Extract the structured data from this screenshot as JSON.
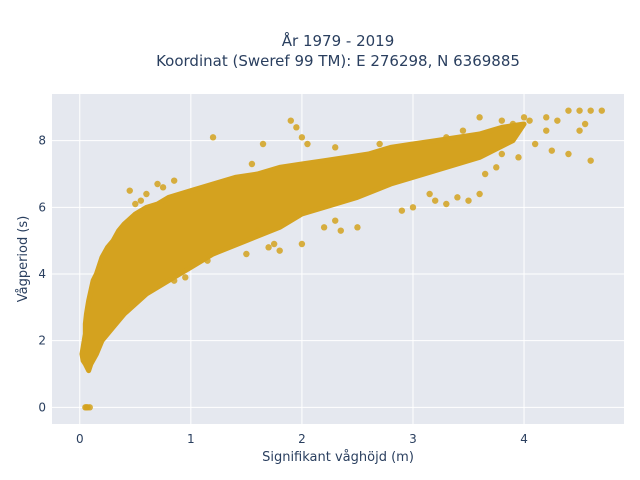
{
  "chart_data": {
    "type": "scatter",
    "title_line1": "År 1979 - 2019",
    "title_line2": "Koordinat (Sweref 99 TM): E 276298, N 6369885",
    "xlabel": "Signifikant våghöjd (m)",
    "ylabel": "Vågperiod (s)",
    "xlim": [
      -0.25,
      4.9
    ],
    "ylim": [
      -0.5,
      9.4
    ],
    "x_ticks": [
      0,
      1,
      2,
      3,
      4
    ],
    "y_ticks": [
      0,
      2,
      4,
      6,
      8
    ],
    "x_tick_labels": [
      "0",
      "1",
      "2",
      "3",
      "4"
    ],
    "y_tick_labels": [
      "0",
      "2",
      "4",
      "6",
      "8"
    ],
    "grid": true,
    "marker_color": "#d4a21f",
    "plot_background": "#e5e8ef",
    "series": [
      {
        "cloud_points": [
          [
            0.02,
            1.6
          ],
          [
            0.03,
            1.8
          ],
          [
            0.04,
            2.0
          ],
          [
            0.05,
            2.2
          ],
          [
            0.05,
            2.5
          ],
          [
            0.06,
            2.8
          ],
          [
            0.07,
            3.0
          ],
          [
            0.08,
            3.2
          ],
          [
            0.1,
            3.5
          ],
          [
            0.12,
            3.8
          ],
          [
            0.15,
            4.0
          ],
          [
            0.2,
            4.5
          ],
          [
            0.25,
            4.8
          ],
          [
            0.3,
            5.0
          ],
          [
            0.35,
            5.3
          ],
          [
            0.4,
            5.5
          ],
          [
            0.5,
            5.8
          ],
          [
            0.6,
            6.0
          ],
          [
            0.7,
            6.1
          ],
          [
            0.8,
            6.3
          ],
          [
            0.9,
            6.4
          ],
          [
            1.0,
            6.5
          ],
          [
            1.2,
            6.7
          ],
          [
            1.4,
            6.9
          ],
          [
            1.6,
            7.0
          ],
          [
            1.8,
            7.2
          ],
          [
            2.0,
            7.3
          ],
          [
            2.2,
            7.4
          ],
          [
            2.4,
            7.5
          ],
          [
            2.6,
            7.6
          ],
          [
            2.8,
            7.8
          ],
          [
            3.0,
            7.9
          ],
          [
            3.2,
            8.0
          ],
          [
            3.4,
            8.1
          ],
          [
            3.6,
            8.2
          ],
          [
            3.8,
            8.4
          ],
          [
            4.0,
            8.5
          ],
          [
            3.9,
            8.0
          ],
          [
            3.6,
            7.5
          ],
          [
            3.3,
            7.2
          ],
          [
            3.0,
            6.9
          ],
          [
            2.8,
            6.7
          ],
          [
            2.5,
            6.3
          ],
          [
            2.2,
            6.0
          ],
          [
            2.0,
            5.8
          ],
          [
            1.8,
            5.4
          ],
          [
            1.5,
            5.0
          ],
          [
            1.2,
            4.6
          ],
          [
            1.0,
            4.2
          ],
          [
            0.8,
            3.8
          ],
          [
            0.6,
            3.4
          ],
          [
            0.4,
            2.8
          ],
          [
            0.3,
            2.4
          ],
          [
            0.2,
            2.0
          ],
          [
            0.15,
            1.6
          ],
          [
            0.1,
            1.3
          ],
          [
            0.08,
            1.1
          ],
          [
            0.05,
            1.3
          ],
          [
            0.03,
            1.4
          ]
        ],
        "outliers": [
          [
            0.05,
            0.0
          ],
          [
            0.07,
            0.0
          ],
          [
            0.09,
            0.0
          ],
          [
            0.06,
            0.0
          ],
          [
            0.7,
            6.7
          ],
          [
            0.75,
            6.6
          ],
          [
            1.2,
            8.1
          ],
          [
            1.55,
            7.3
          ],
          [
            1.9,
            8.6
          ],
          [
            1.95,
            8.4
          ],
          [
            2.0,
            8.1
          ],
          [
            2.05,
            7.9
          ],
          [
            1.65,
            7.9
          ],
          [
            2.3,
            7.8
          ],
          [
            2.7,
            7.9
          ],
          [
            3.3,
            8.1
          ],
          [
            3.45,
            8.3
          ],
          [
            3.6,
            8.7
          ],
          [
            3.8,
            8.6
          ],
          [
            3.9,
            8.5
          ],
          [
            4.0,
            8.7
          ],
          [
            4.05,
            8.6
          ],
          [
            4.2,
            8.7
          ],
          [
            4.3,
            8.6
          ],
          [
            4.4,
            8.9
          ],
          [
            4.5,
            8.9
          ],
          [
            4.6,
            8.9
          ],
          [
            4.7,
            8.9
          ],
          [
            4.55,
            8.5
          ],
          [
            4.2,
            8.3
          ],
          [
            4.5,
            8.3
          ],
          [
            4.1,
            7.9
          ],
          [
            4.25,
            7.7
          ],
          [
            4.4,
            7.6
          ],
          [
            4.6,
            7.4
          ],
          [
            3.95,
            7.5
          ],
          [
            3.75,
            7.2
          ],
          [
            3.8,
            7.6
          ],
          [
            3.65,
            7.0
          ],
          [
            3.3,
            6.1
          ],
          [
            3.4,
            6.3
          ],
          [
            3.15,
            6.4
          ],
          [
            3.2,
            6.2
          ],
          [
            2.3,
            5.6
          ],
          [
            2.5,
            5.4
          ],
          [
            2.35,
            5.3
          ],
          [
            2.2,
            5.4
          ],
          [
            2.0,
            4.9
          ],
          [
            1.8,
            4.7
          ],
          [
            1.75,
            4.9
          ],
          [
            1.6,
            5.3
          ],
          [
            1.5,
            4.6
          ],
          [
            1.7,
            4.8
          ],
          [
            1.15,
            4.4
          ],
          [
            0.95,
            3.9
          ],
          [
            0.85,
            3.8
          ],
          [
            0.55,
            6.2
          ],
          [
            0.45,
            6.5
          ],
          [
            0.6,
            6.4
          ],
          [
            0.5,
            6.1
          ],
          [
            0.85,
            6.8
          ],
          [
            3.5,
            6.2
          ],
          [
            3.6,
            6.4
          ],
          [
            3.0,
            6.0
          ],
          [
            2.9,
            5.9
          ]
        ]
      }
    ]
  }
}
